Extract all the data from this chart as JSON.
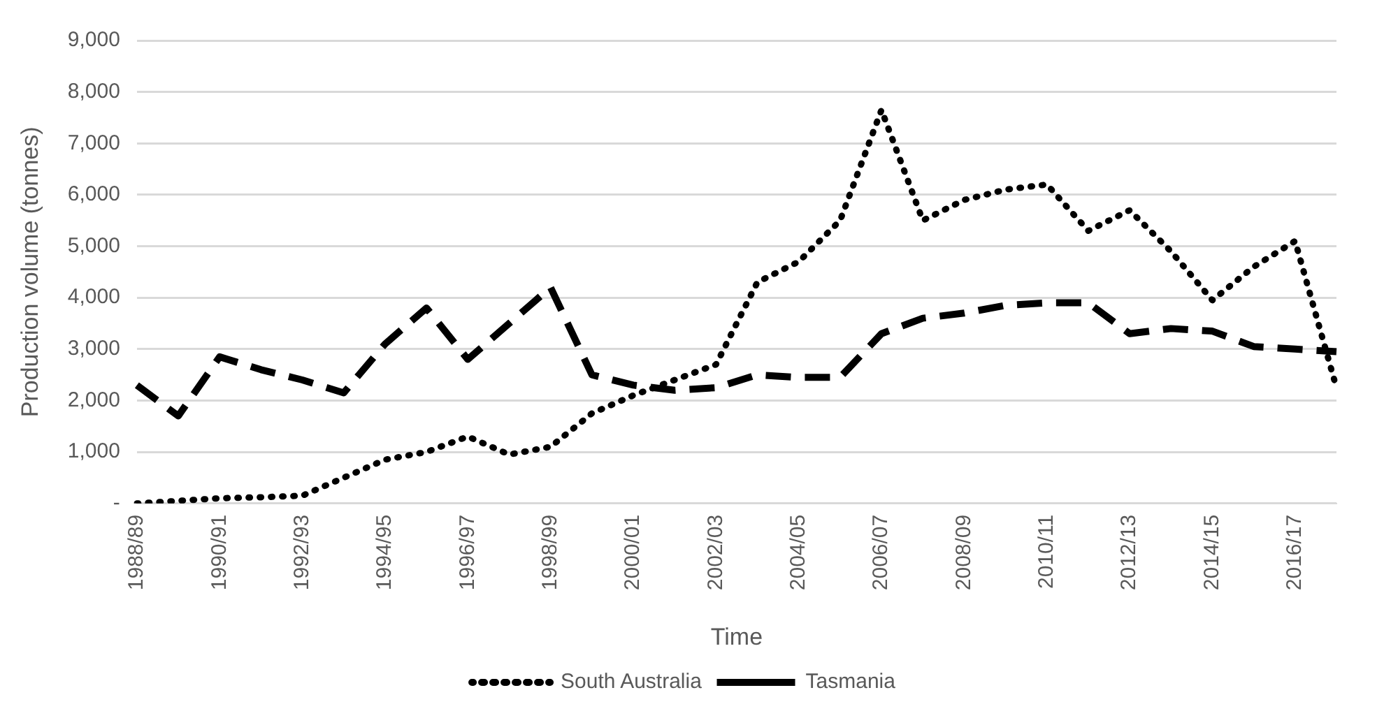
{
  "chart_data": {
    "type": "line",
    "xlabel": "Time",
    "ylabel": "Production volume (tonnes)",
    "categories": [
      "1988/89",
      null,
      "1990/91",
      null,
      "1992/93",
      null,
      "1994/95",
      null,
      "1996/97",
      null,
      "1998/99",
      null,
      "2000/01",
      null,
      "2002/03",
      null,
      "2004/05",
      null,
      "2006/07",
      null,
      "2008/09",
      null,
      "2010/11",
      null,
      "2012/13",
      null,
      "2014/15",
      null,
      "2016/17",
      null
    ],
    "series": [
      {
        "name": "South Australia",
        "color": "#000000",
        "line_style": "dotted",
        "values": [
          0,
          50,
          100,
          120,
          150,
          500,
          850,
          1000,
          1300,
          950,
          1100,
          1750,
          2100,
          2400,
          2700,
          4300,
          4700,
          5500,
          7650,
          5500,
          5900,
          6100,
          6200,
          5300,
          5700,
          4900,
          3950,
          4600,
          5100,
          2250
        ]
      },
      {
        "name": "Tasmania",
        "color": "#000000",
        "line_style": "dashed",
        "values": [
          2300,
          1700,
          2850,
          2600,
          2400,
          2150,
          3100,
          3800,
          2800,
          3500,
          4200,
          2500,
          2300,
          2200,
          2250,
          2500,
          2450,
          2450,
          3300,
          3600,
          3700,
          3850,
          3900,
          3900,
          3300,
          3400,
          3350,
          3050,
          3000,
          2950
        ]
      }
    ],
    "ylim": [
      0,
      9000
    ],
    "yticks": [
      {
        "value": 0,
        "label": "-"
      },
      {
        "value": 1000,
        "label": "1,000"
      },
      {
        "value": 2000,
        "label": "2,000"
      },
      {
        "value": 3000,
        "label": "3,000"
      },
      {
        "value": 4000,
        "label": "4,000"
      },
      {
        "value": 5000,
        "label": "5,000"
      },
      {
        "value": 6000,
        "label": "6,000"
      },
      {
        "value": 7000,
        "label": "7,000"
      },
      {
        "value": 8000,
        "label": "8,000"
      },
      {
        "value": 9000,
        "label": "9,000"
      }
    ],
    "grid": "y",
    "legend": "bottom",
    "marker": "none"
  }
}
